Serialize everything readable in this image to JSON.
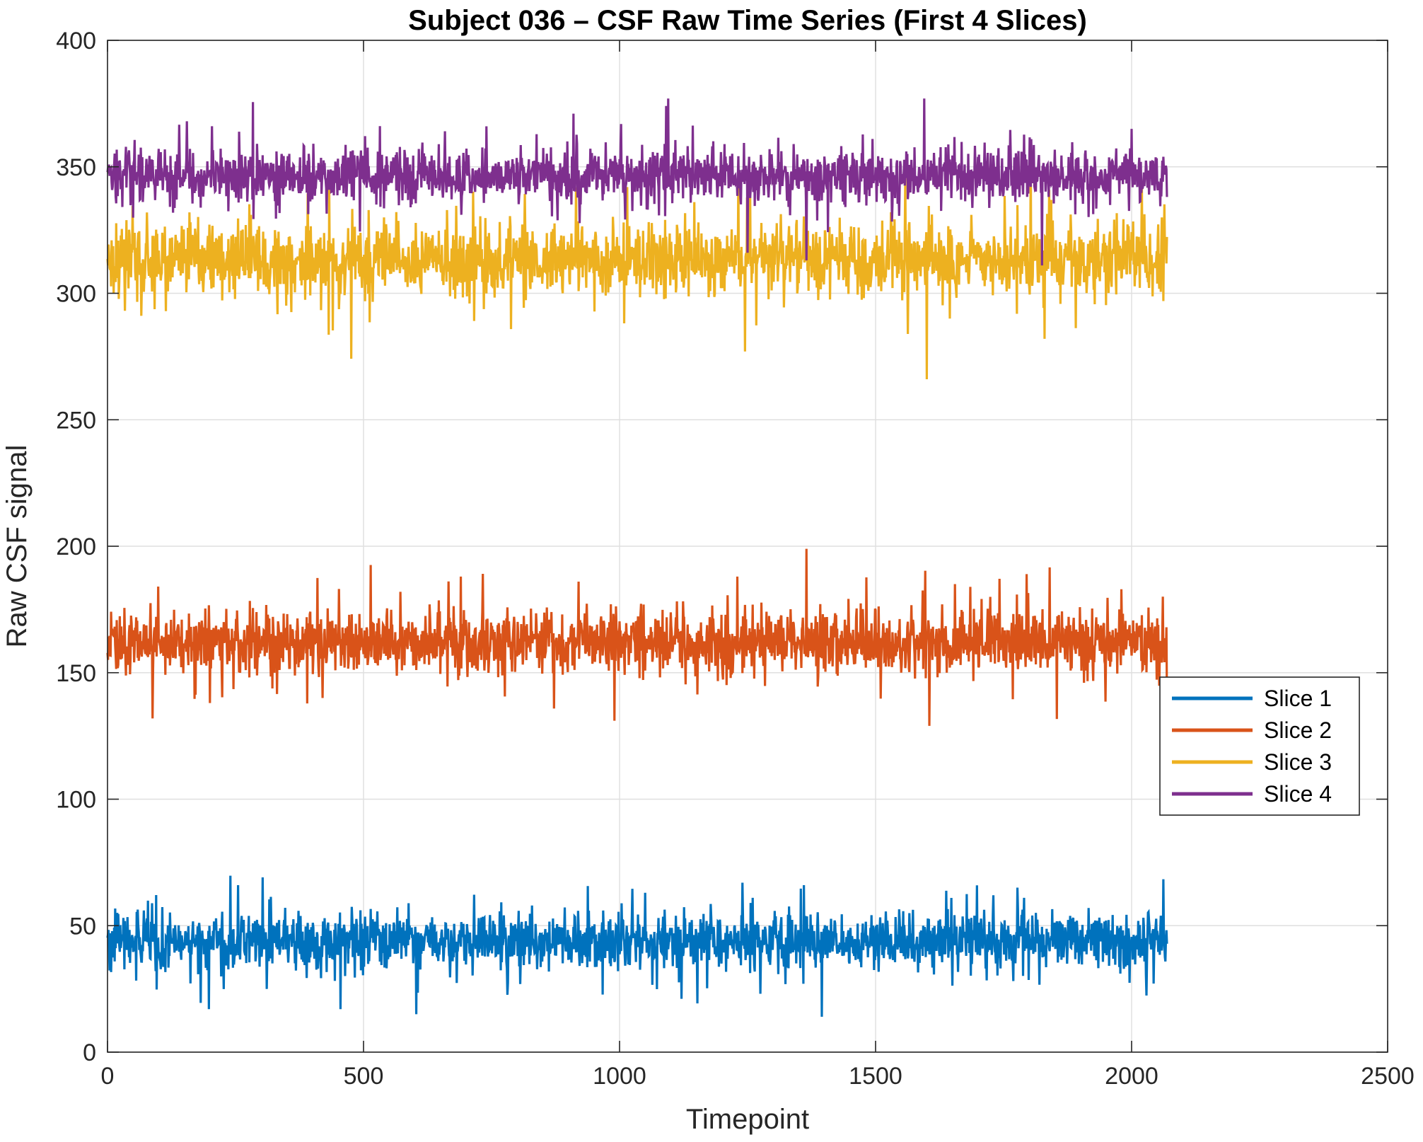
{
  "chart_data": {
    "type": "line",
    "title": "Subject 036 – CSF Raw Time Series (First 4 Slices)",
    "xlabel": "Timepoint",
    "ylabel": "Raw CSF signal",
    "xlim": [
      0,
      2500
    ],
    "ylim": [
      0,
      400
    ],
    "xticks": [
      0,
      500,
      1000,
      1500,
      2000,
      2500
    ],
    "yticks": [
      0,
      50,
      100,
      150,
      200,
      250,
      300,
      350,
      400
    ],
    "grid": true,
    "legend_position": "right, lower-middle",
    "n_timepoints": 2070,
    "series": [
      {
        "name": "Slice 1",
        "color": "#0072BD",
        "mean": 44,
        "spread": 5.5,
        "spikes": [
          [
            198,
            17
          ],
          [
            255,
            66
          ],
          [
            455,
            17
          ],
          [
            603,
            15
          ],
          [
            1050,
            63
          ],
          [
            1240,
            67
          ],
          [
            1260,
            61
          ],
          [
            1360,
            66
          ],
          [
            1395,
            14
          ],
          [
            1790,
            61
          ]
        ]
      },
      {
        "name": "Slice 2",
        "color": "#D95319",
        "mean": 162,
        "spread": 6,
        "spikes": [
          [
            200,
            138
          ],
          [
            420,
            140
          ],
          [
            690,
            188
          ],
          [
            920,
            186
          ],
          [
            990,
            131
          ],
          [
            1230,
            188
          ],
          [
            1365,
            199
          ],
          [
            1605,
            129
          ],
          [
            1795,
            189
          ],
          [
            1980,
            183
          ]
        ]
      },
      {
        "name": "Slice 3",
        "color": "#EDB120",
        "mean": 313,
        "spread": 7,
        "spikes": [
          [
            160,
            332
          ],
          [
            540,
            330
          ],
          [
            1015,
            342
          ],
          [
            1245,
            277
          ],
          [
            1255,
            341
          ],
          [
            1600,
            266
          ],
          [
            1645,
            290
          ],
          [
            1830,
            282
          ],
          [
            2020,
            343
          ]
        ]
      },
      {
        "name": "Slice 4",
        "color": "#7E2F8E",
        "mean": 346,
        "spread": 5,
        "spikes": [
          [
            155,
            368
          ],
          [
            740,
            366
          ],
          [
            910,
            371
          ],
          [
            1095,
            377
          ],
          [
            1250,
            316
          ],
          [
            1365,
            313
          ],
          [
            1595,
            377
          ],
          [
            1825,
            311
          ],
          [
            2000,
            365
          ]
        ]
      }
    ]
  }
}
